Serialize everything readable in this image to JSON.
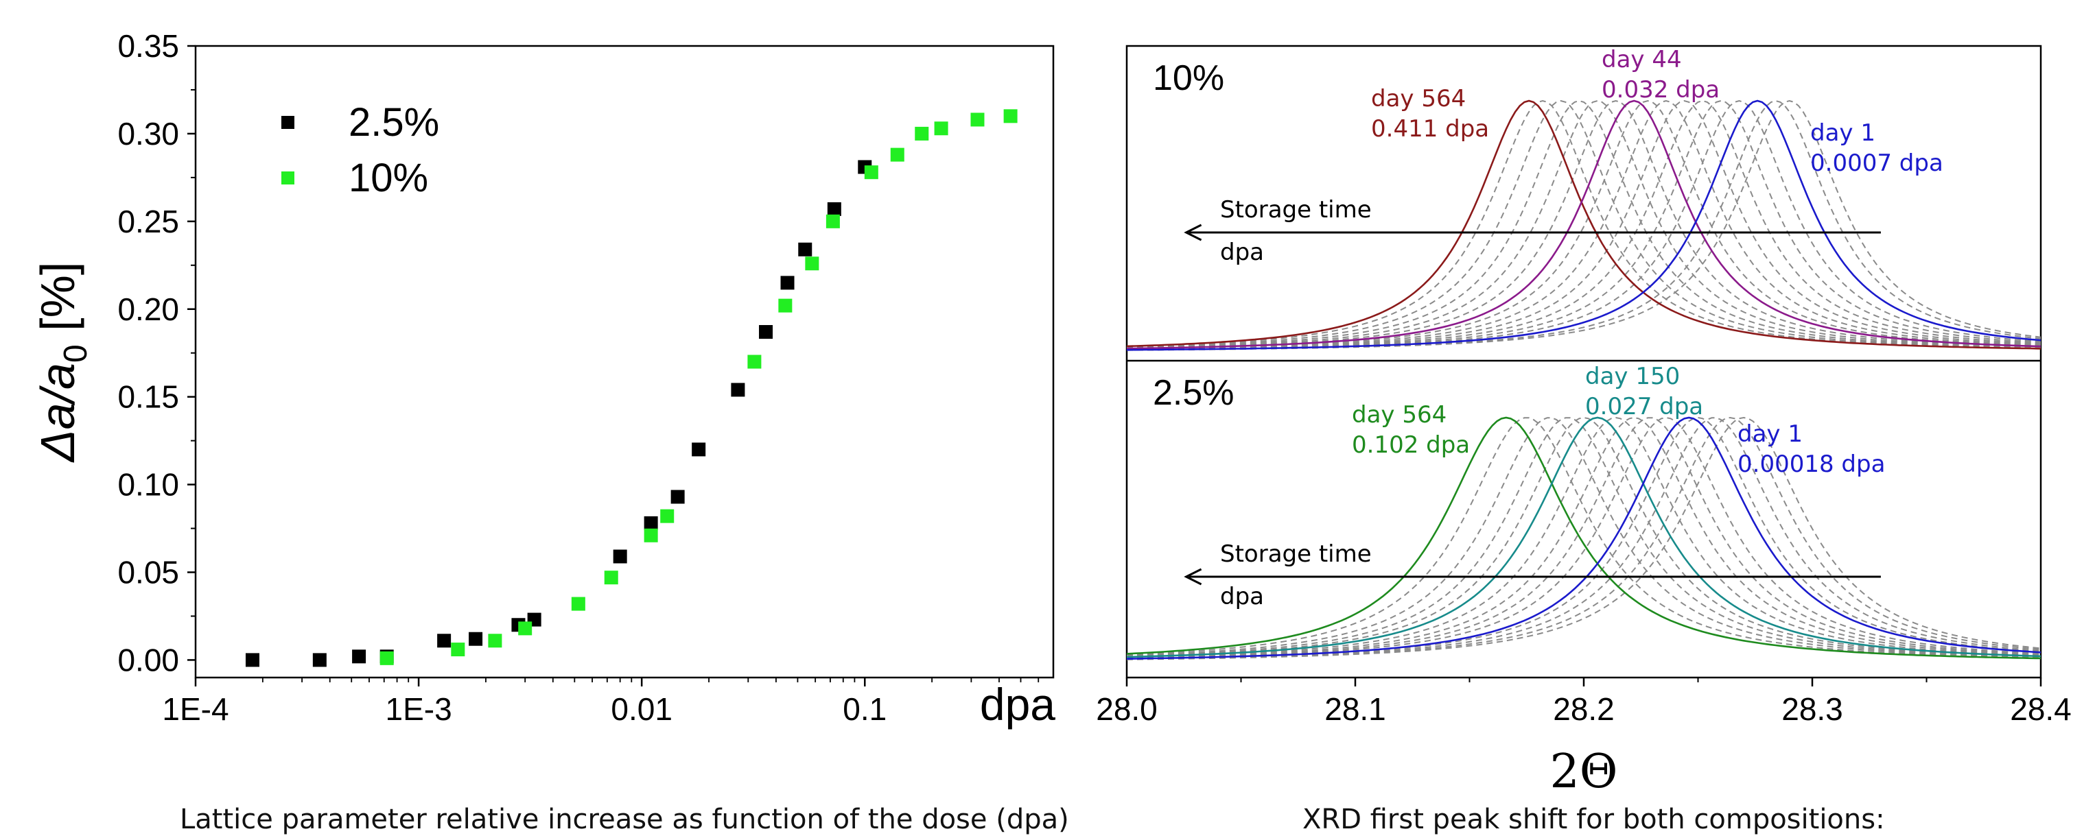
{
  "chart_data": [
    {
      "type": "scatter",
      "caption": "Lattice parameter relative increase as function of the dose (dpa)",
      "ylabel": "Δa/a0 [%]",
      "ylabel_main": "Δa/a",
      "ylabel_sub": "0",
      "ylabel_unit": "[%]",
      "xlabel": "dpa",
      "x_scale": "log",
      "xlim": [
        0.0001,
        0.7
      ],
      "ylim": [
        -0.01,
        0.35
      ],
      "xticks": [
        {
          "v": 0.0001,
          "label": "1E-4"
        },
        {
          "v": 0.001,
          "label": "1E-3"
        },
        {
          "v": 0.01,
          "label": "0.01"
        },
        {
          "v": 0.1,
          "label": "0.1"
        }
      ],
      "yticks": [
        {
          "v": 0.0,
          "label": "0.00"
        },
        {
          "v": 0.05,
          "label": "0.05"
        },
        {
          "v": 0.1,
          "label": "0.10"
        },
        {
          "v": 0.15,
          "label": "0.15"
        },
        {
          "v": 0.2,
          "label": "0.20"
        },
        {
          "v": 0.25,
          "label": "0.25"
        },
        {
          "v": 0.3,
          "label": "0.30"
        },
        {
          "v": 0.35,
          "label": "0.35"
        }
      ],
      "legend_position": "top-left",
      "series": [
        {
          "name": "2.5%",
          "color": "#000000",
          "points": [
            [
              0.00018,
              0.0
            ],
            [
              0.00036,
              0.0
            ],
            [
              0.00054,
              0.002
            ],
            [
              0.00072,
              0.002
            ],
            [
              0.0013,
              0.011
            ],
            [
              0.0018,
              0.012
            ],
            [
              0.0028,
              0.02
            ],
            [
              0.0033,
              0.023
            ],
            [
              0.008,
              0.059
            ],
            [
              0.011,
              0.078
            ],
            [
              0.0145,
              0.093
            ],
            [
              0.018,
              0.12
            ],
            [
              0.027,
              0.154
            ],
            [
              0.036,
              0.187
            ],
            [
              0.045,
              0.215
            ],
            [
              0.054,
              0.234
            ],
            [
              0.073,
              0.257
            ],
            [
              0.1,
              0.281
            ]
          ]
        },
        {
          "name": "10%",
          "color": "#22ee22",
          "points": [
            [
              0.00072,
              0.001
            ],
            [
              0.0015,
              0.006
            ],
            [
              0.0022,
              0.011
            ],
            [
              0.003,
              0.018
            ],
            [
              0.0052,
              0.032
            ],
            [
              0.0073,
              0.047
            ],
            [
              0.011,
              0.071
            ],
            [
              0.013,
              0.082
            ],
            [
              0.032,
              0.17
            ],
            [
              0.044,
              0.202
            ],
            [
              0.058,
              0.226
            ],
            [
              0.072,
              0.25
            ],
            [
              0.107,
              0.278
            ],
            [
              0.14,
              0.288
            ],
            [
              0.18,
              0.3
            ],
            [
              0.22,
              0.303
            ],
            [
              0.32,
              0.308
            ],
            [
              0.45,
              0.31
            ]
          ]
        }
      ]
    },
    {
      "type": "line",
      "caption": "XRD first peak shift for both compositions:",
      "xlabel": "2Θ",
      "xlim": [
        28.0,
        28.4
      ],
      "xticks": [
        {
          "v": 28.0,
          "label": "28.0"
        },
        {
          "v": 28.1,
          "label": "28.1"
        },
        {
          "v": 28.2,
          "label": "28.2"
        },
        {
          "v": 28.3,
          "label": "28.3"
        },
        {
          "v": 28.4,
          "label": "28.4"
        }
      ],
      "panels": [
        {
          "label": "10%",
          "arrow_text_1": "Storage time",
          "arrow_text_2": "dpa",
          "arrow_from": 28.33,
          "arrow_to": 28.026,
          "peak_width": 0.028,
          "gray_centers": [
            28.182,
            28.19,
            28.198,
            28.206,
            28.214,
            28.228,
            28.236,
            28.244,
            28.252,
            28.26,
            28.268,
            28.284,
            28.29
          ],
          "series": [
            {
              "name_line1": "day 564",
              "name_line2": "0.411 dpa",
              "center": 28.176,
              "color": "#8b1a1a"
            },
            {
              "name_line1": "day 44",
              "name_line2": "0.032 dpa",
              "center": 28.222,
              "color": "#8b1a8b"
            },
            {
              "name_line1": "day 1",
              "name_line2": "0.0007 dpa",
              "center": 28.276,
              "color": "#1a1acc"
            }
          ]
        },
        {
          "label": "2.5%",
          "arrow_text_1": "Storage time",
          "arrow_text_2": "dpa",
          "arrow_from": 28.33,
          "arrow_to": 28.026,
          "peak_width": 0.033,
          "gray_centers": [
            28.175,
            28.185,
            28.193,
            28.2,
            28.214,
            28.222,
            28.229,
            28.236,
            28.25,
            28.257,
            28.264,
            28.27
          ],
          "series": [
            {
              "name_line1": "day 564",
              "name_line2": "0.102 dpa",
              "center": 28.166,
              "color": "#1e8b1e"
            },
            {
              "name_line1": "day 150",
              "name_line2": "0.027 dpa",
              "center": 28.206,
              "color": "#178b8b"
            },
            {
              "name_line1": "day 1",
              "name_line2": "0.00018 dpa",
              "center": 28.246,
              "color": "#1a1acc"
            }
          ]
        }
      ]
    }
  ]
}
